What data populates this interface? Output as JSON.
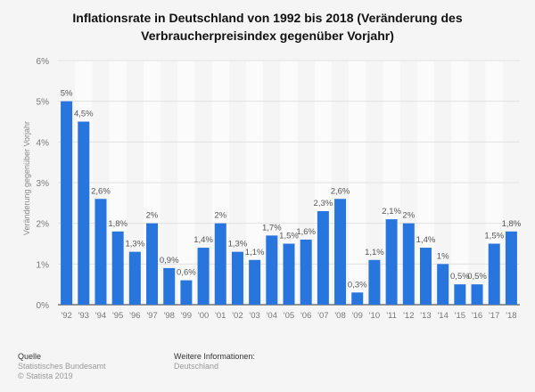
{
  "chart_data": {
    "type": "bar",
    "title": "Inflationsrate in Deutschland von 1992 bis 2018 (Veränderung des Verbraucherpreisindex gegenüber Vorjahr)",
    "ylabel": "Veränderung gegenüber Vorjahr",
    "xlabel": "",
    "ylim": [
      0,
      6
    ],
    "yticks": [
      "0%",
      "1%",
      "2%",
      "3%",
      "4%",
      "5%",
      "6%"
    ],
    "grid": true,
    "bar_color": "#2876dd",
    "categories": [
      "'92",
      "'93",
      "'94",
      "'95",
      "'96",
      "'97",
      "'98",
      "'99",
      "'00",
      "'01",
      "'02",
      "'03",
      "'04",
      "'05",
      "'06",
      "'07",
      "'08",
      "'09",
      "'10",
      "'11",
      "'12",
      "'13",
      "'14",
      "'15",
      "'16",
      "'17",
      "'18"
    ],
    "values": [
      5,
      4.5,
      2.6,
      1.8,
      1.3,
      2,
      0.9,
      0.6,
      1.4,
      2,
      1.3,
      1.1,
      1.7,
      1.5,
      1.6,
      2.3,
      2.6,
      0.3,
      1.1,
      2.1,
      2,
      1.4,
      1,
      0.5,
      0.5,
      1.5,
      1.8
    ],
    "data_labels": [
      "5%",
      "4,5%",
      "2,6%",
      "1,8%",
      "1,3%",
      "2%",
      "0,9%",
      "0,6%",
      "1,4%",
      "2%",
      "1,3%",
      "1,1%",
      "1,7%",
      "1,5%",
      "1,6%",
      "2,3%",
      "2,6%",
      "0,3%",
      "1,1%",
      "2,1%",
      "2%",
      "1,4%",
      "1%",
      "0,5%",
      "0,5%",
      "1,5%",
      "1,8%"
    ]
  },
  "footer": {
    "source_heading": "Quelle",
    "source": "Statistisches Bundesamt",
    "copyright": "© Statista 2019",
    "info_heading": "Weitere Informationen:",
    "info": "Deutschland"
  }
}
